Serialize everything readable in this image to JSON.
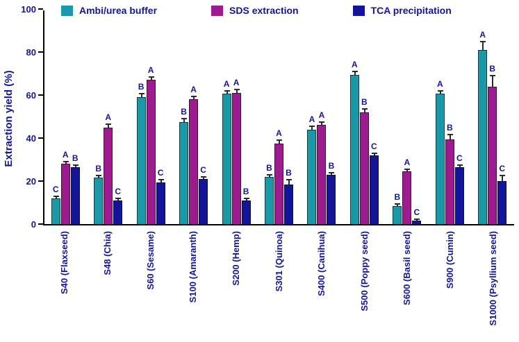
{
  "legend": [
    {
      "label": "Ambi/urea buffer",
      "color": "#1a98a8"
    },
    {
      "label": "SDS extraction",
      "color": "#9c1b8e"
    },
    {
      "label": "TCA precipitation",
      "color": "#14149b"
    }
  ],
  "chart_data": {
    "type": "bar",
    "title": "",
    "xlabel": "",
    "ylabel": "Extraction yield (%)",
    "ylim": [
      0,
      100
    ],
    "yticks": [
      0,
      20,
      40,
      60,
      80,
      100
    ],
    "grid": false,
    "legend_position": "top",
    "error_bars": true,
    "categories": [
      "S40 (Flaxseed)",
      "S48 (Chia)",
      "S60 (Sesame)",
      "S100 (Amaranth)",
      "S200 (Hemp)",
      "S301 (Quinoa)",
      "S400 (Canihua)",
      "S500 (Poppy seed)",
      "S600 (Basil seed)",
      "S900 (Cumin)",
      "S1000 (Psyllium seed)"
    ],
    "series": [
      {
        "name": "Ambi/urea buffer",
        "color": "#1a98a8",
        "values": [
          12,
          21.5,
          59,
          47.5,
          60.5,
          22,
          44,
          69.5,
          8.5,
          60.5,
          81
        ],
        "errors": [
          1,
          1,
          1.5,
          1.5,
          1.5,
          1,
          1.5,
          1.5,
          1,
          1.5,
          4
        ],
        "letters": [
          "C",
          "B",
          "B",
          "B",
          "A",
          "B",
          "A",
          "A",
          "B",
          "A",
          "A"
        ]
      },
      {
        "name": "SDS extraction",
        "color": "#9c1b8e",
        "values": [
          28,
          45,
          67,
          58,
          61,
          37.5,
          46,
          52,
          24.5,
          39.5,
          64
        ],
        "errors": [
          1,
          1.5,
          1.5,
          1.5,
          1.5,
          1.5,
          1.5,
          1.5,
          1,
          2,
          5
        ],
        "letters": [
          "A",
          "A",
          "A",
          "A",
          "A",
          "A",
          "A",
          "B",
          "A",
          "B",
          "B"
        ]
      },
      {
        "name": "TCA precipitation",
        "color": "#14149b",
        "values": [
          26.5,
          11,
          19.5,
          21,
          11,
          18.5,
          23,
          32,
          1.5,
          26.5,
          20
        ],
        "errors": [
          1,
          1,
          1,
          1,
          1,
          2,
          1,
          1,
          0.5,
          1,
          2.5
        ],
        "letters": [
          "B",
          "C",
          "C",
          "C",
          "B",
          "B",
          "B",
          "C",
          "C",
          "C",
          "C"
        ]
      }
    ]
  }
}
